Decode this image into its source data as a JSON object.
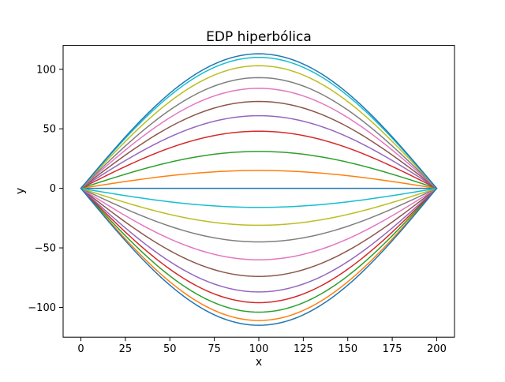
{
  "chart_data": {
    "type": "line",
    "title": "EDP hiperbólica",
    "xlabel": "x",
    "ylabel": "y",
    "xlim": [
      -10,
      210
    ],
    "ylim": [
      -125,
      120
    ],
    "xticks": [
      0,
      25,
      50,
      75,
      100,
      125,
      150,
      175,
      200
    ],
    "xtick_labels": [
      "0",
      "25",
      "50",
      "75",
      "100",
      "125",
      "150",
      "175",
      "200"
    ],
    "yticks": [
      -100,
      -50,
      0,
      50,
      100
    ],
    "ytick_labels": [
      "−100",
      "−50",
      "0",
      "50",
      "100"
    ],
    "grid": false,
    "legend": false,
    "x_range": [
      0,
      200
    ],
    "curve_model": "y(x) = amplitude * sin(pi * x / 200) for x in [0, 200]",
    "series": [
      {
        "color": "#1f77b4",
        "amplitude": 0
      },
      {
        "color": "#ff7f0e",
        "amplitude": 15
      },
      {
        "color": "#2ca02c",
        "amplitude": 31
      },
      {
        "color": "#d62728",
        "amplitude": 48
      },
      {
        "color": "#9467bd",
        "amplitude": 61
      },
      {
        "color": "#8c564b",
        "amplitude": 73
      },
      {
        "color": "#e377c2",
        "amplitude": 84
      },
      {
        "color": "#7f7f7f",
        "amplitude": 93
      },
      {
        "color": "#bcbd22",
        "amplitude": 103
      },
      {
        "color": "#17becf",
        "amplitude": 110
      },
      {
        "color": "#1f77b4",
        "amplitude": 113
      },
      {
        "color": "#ff7f0e",
        "amplitude": -111
      },
      {
        "color": "#2ca02c",
        "amplitude": -104
      },
      {
        "color": "#d62728",
        "amplitude": -96
      },
      {
        "color": "#9467bd",
        "amplitude": -87
      },
      {
        "color": "#8c564b",
        "amplitude": -74
      },
      {
        "color": "#e377c2",
        "amplitude": -60
      },
      {
        "color": "#7f7f7f",
        "amplitude": -45
      },
      {
        "color": "#bcbd22",
        "amplitude": -31
      },
      {
        "color": "#17becf",
        "amplitude": -16
      },
      {
        "color": "#1f77b4",
        "amplitude": -115
      }
    ],
    "frame_color": "#000000",
    "background_color": "#ffffff"
  }
}
